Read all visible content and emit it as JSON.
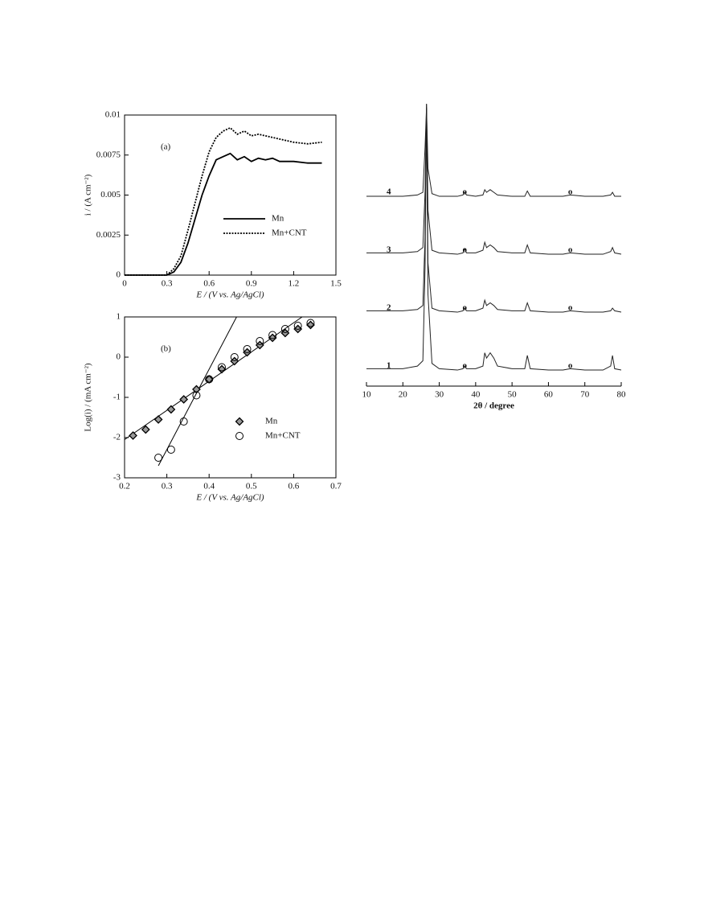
{
  "chart_data": [
    {
      "type": "line",
      "annotation": "(a)",
      "x_label": "E / (V vs. Ag/AgCl)",
      "y_label": "i / (A cm⁻²)",
      "x": [
        0,
        0.1,
        0.2,
        0.3,
        0.35,
        0.4,
        0.45,
        0.5,
        0.55,
        0.6,
        0.65,
        0.7,
        0.75,
        0.8,
        0.85,
        0.9,
        0.95,
        1.0,
        1.05,
        1.1,
        1.2,
        1.3,
        1.4
      ],
      "series": [
        {
          "name": "Mn",
          "color": "#000000",
          "line_style": "solid",
          "values": [
            0,
            0,
            0,
            0,
            0.0002,
            0.0008,
            0.002,
            0.0035,
            0.005,
            0.0062,
            0.0072,
            0.0074,
            0.0076,
            0.0072,
            0.0074,
            0.0071,
            0.0073,
            0.0072,
            0.0073,
            0.0071,
            0.0071,
            0.007,
            0.007
          ]
        },
        {
          "name": "Mn+CNT",
          "color": "#000000",
          "line_style": "dotted",
          "values": [
            0,
            0,
            0,
            0,
            0.0004,
            0.0012,
            0.0028,
            0.0045,
            0.0062,
            0.0077,
            0.0086,
            0.009,
            0.0092,
            0.0088,
            0.009,
            0.0087,
            0.0088,
            0.0087,
            0.0086,
            0.0085,
            0.0083,
            0.0082,
            0.0083
          ]
        }
      ],
      "xlim": [
        0,
        1.5
      ],
      "xticks": [
        0,
        0.3,
        0.6,
        0.9,
        1.2,
        1.5
      ],
      "ylim": [
        0,
        0.01
      ],
      "yticks": [
        0,
        0.0025,
        0.005,
        0.0075,
        0.01
      ]
    },
    {
      "type": "scatter",
      "annotation": "(b)",
      "x_label": "E / (V vs. Ag/AgCl)",
      "y_label": "Log(i) / (mA cm⁻²)",
      "series": [
        {
          "name": "Mn",
          "color": "#000000",
          "marker": "diamond",
          "x": [
            0.22,
            0.25,
            0.28,
            0.31,
            0.34,
            0.37,
            0.4,
            0.43,
            0.46,
            0.49,
            0.52,
            0.55,
            0.58,
            0.61,
            0.64
          ],
          "values": [
            -1.95,
            -1.8,
            -1.55,
            -1.3,
            -1.05,
            -0.8,
            -0.55,
            -0.3,
            -0.1,
            0.12,
            0.3,
            0.48,
            0.6,
            0.7,
            0.8
          ],
          "fit": {
            "x": [
              0.2,
              0.62
            ],
            "y": [
              -2.05,
              1
            ]
          }
        },
        {
          "name": "Mn+CNT",
          "color": "#000000",
          "marker": "circle",
          "x": [
            0.28,
            0.31,
            0.34,
            0.37,
            0.4,
            0.43,
            0.46,
            0.49,
            0.52,
            0.55,
            0.58,
            0.61,
            0.64
          ],
          "values": [
            -2.5,
            -2.3,
            -1.6,
            -0.95,
            -0.55,
            -0.25,
            0,
            0.2,
            0.4,
            0.55,
            0.7,
            0.78,
            0.85
          ],
          "fit": {
            "x": [
              0.28,
              0.465
            ],
            "y": [
              -2.7,
              1
            ]
          }
        }
      ],
      "xlim": [
        0.2,
        0.7
      ],
      "xticks": [
        0.2,
        0.3,
        0.4,
        0.5,
        0.6,
        0.7
      ],
      "ylim": [
        -3,
        1
      ],
      "yticks": [
        -3,
        -2,
        -1,
        0,
        1
      ]
    },
    {
      "type": "line",
      "offset_traces": true,
      "x_label": "2θ / degree",
      "x": [
        10,
        20,
        24,
        25.5,
        26.1,
        26.5,
        26.9,
        28,
        30,
        35,
        36.5,
        37,
        37.5,
        40,
        42,
        42.5,
        43,
        44,
        45,
        46,
        50,
        53.5,
        54.2,
        55,
        60,
        64,
        66,
        70,
        75,
        77.1,
        77.6,
        78.2,
        80
      ],
      "series": [
        {
          "name": "1",
          "color": "#222222",
          "values": [
            2,
            2,
            3,
            5,
            40,
            100,
            30,
            4,
            2,
            1.5,
            2,
            3,
            2,
            2,
            3,
            8,
            6,
            8,
            6,
            3,
            2,
            2,
            7,
            2,
            1.5,
            1.5,
            2,
            1.5,
            1.5,
            3,
            7,
            2,
            1.5
          ]
        },
        {
          "name": "2",
          "color": "#222222",
          "values": [
            2,
            2,
            2.5,
            4,
            30,
            80,
            20,
            3,
            2,
            1.5,
            2,
            3,
            2,
            2,
            3,
            6,
            4,
            5,
            4,
            2.5,
            2,
            2,
            5,
            2,
            1.5,
            1.5,
            2,
            1.5,
            1.5,
            2,
            3,
            2,
            1.5
          ]
        },
        {
          "name": "3",
          "color": "#222222",
          "values": [
            2,
            2,
            2.5,
            4,
            25,
            58,
            18,
            3,
            2,
            1.5,
            2,
            3.5,
            2,
            2,
            3,
            6,
            4,
            5,
            4,
            2.5,
            2,
            2,
            5,
            2,
            1.5,
            1.5,
            2,
            1.5,
            1.5,
            2.5,
            4,
            2,
            1.5
          ]
        },
        {
          "name": "4",
          "color": "#222222",
          "values": [
            1.5,
            1.5,
            2,
            3,
            20,
            35,
            12,
            2.5,
            1.5,
            1.5,
            2,
            3,
            2,
            1.5,
            2,
            4,
            3,
            4,
            3,
            2,
            1.5,
            1.5,
            3.5,
            1.5,
            1.5,
            1.5,
            2,
            1.5,
            1.5,
            2,
            3,
            1.5,
            1.5
          ]
        }
      ],
      "peak_markers": {
        "x": [
          37,
          66
        ],
        "label": "o"
      },
      "xlim": [
        10,
        80
      ],
      "xticks": [
        10,
        20,
        30,
        40,
        50,
        60,
        70,
        80
      ]
    }
  ]
}
